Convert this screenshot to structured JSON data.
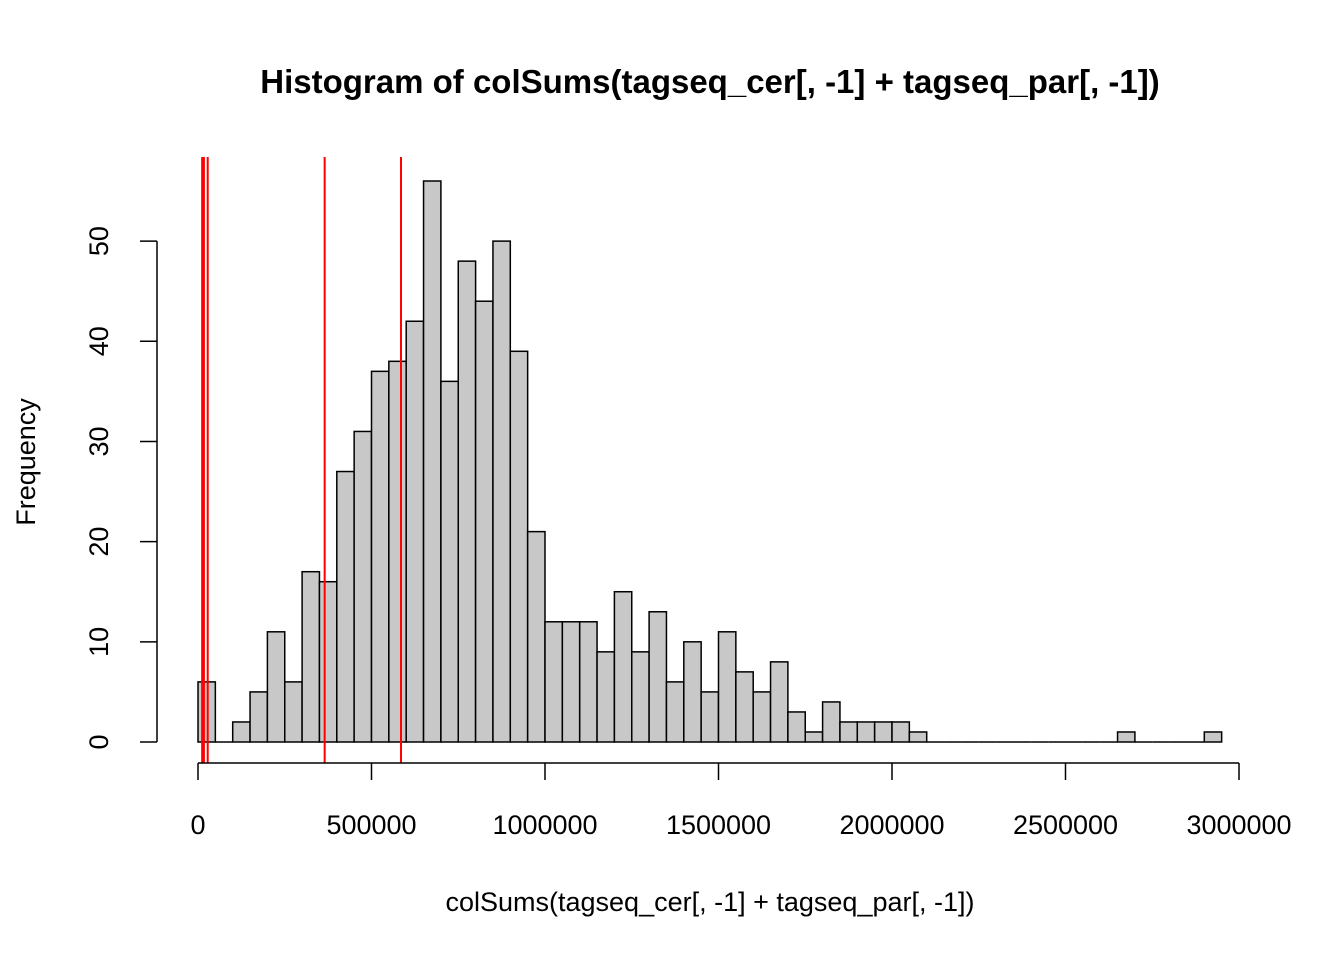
{
  "chart_data": {
    "type": "bar",
    "title": "Histogram of colSums(tagseq_cer[, -1] + tagseq_par[, -1])",
    "xlabel": "colSums(tagseq_cer[, -1] + tagseq_par[, -1])",
    "ylabel": "Frequency",
    "xlim": [
      0,
      3000000
    ],
    "ylim": [
      0,
      56
    ],
    "bin_width": 50000,
    "bin_start": 0,
    "counts": [
      6,
      0,
      2,
      5,
      11,
      6,
      17,
      16,
      27,
      31,
      37,
      38,
      42,
      56,
      36,
      48,
      44,
      50,
      39,
      21,
      12,
      12,
      12,
      9,
      15,
      9,
      13,
      6,
      10,
      5,
      11,
      7,
      5,
      8,
      3,
      1,
      4,
      2,
      2,
      2,
      2,
      1,
      0,
      0,
      0,
      0,
      0,
      0,
      0,
      0,
      0,
      0,
      0,
      1,
      0,
      0,
      0,
      0,
      1
    ],
    "x_ticks": [
      0,
      500000,
      1000000,
      1500000,
      2000000,
      2500000,
      3000000
    ],
    "x_tick_labels": [
      "0",
      "500000",
      "1000000",
      "1500000",
      "2000000",
      "2500000",
      "3000000"
    ],
    "y_ticks": [
      0,
      10,
      20,
      30,
      40,
      50
    ],
    "y_tick_labels": [
      "0",
      "10",
      "20",
      "30",
      "40",
      "50"
    ],
    "bar_fill": "#c8c8c8",
    "bar_stroke": "#000000",
    "vlines": [
      12000,
      17000,
      28000,
      365000,
      585000
    ],
    "vline_color": "#ff0000",
    "grid": false,
    "legend": "none"
  }
}
